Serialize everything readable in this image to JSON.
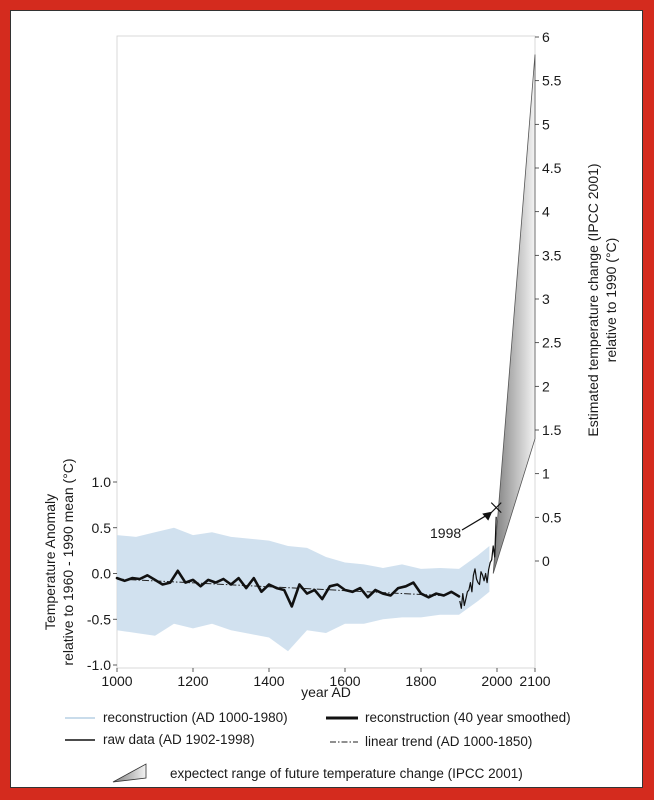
{
  "colors": {
    "background_border": "#d42b1e",
    "reconstruction_band": "#c9dcec",
    "smoothed_line": "#111111",
    "raw_data": "#111111",
    "trend_line": "#222222",
    "projection_fill_top": "#efefef",
    "projection_fill_dark": "#8a8a8a"
  },
  "chart_data": {
    "type": "line",
    "xlabel": "year AD",
    "ylabel_left": [
      "Temperature Anomaly",
      "relative to 1960 - 1990 mean (°C)"
    ],
    "ylabel_right": [
      "Estimated temperature change (IPCC 2001)",
      "relative to 1990 (°C)"
    ],
    "x_ticks": [
      "1000",
      "1200",
      "1400",
      "1600",
      "1800",
      "2000",
      "2100"
    ],
    "x_tick_values": [
      1000,
      1200,
      1400,
      1600,
      1800,
      2000,
      2100
    ],
    "xlim": [
      1000,
      2100
    ],
    "left_ticks": [
      "1.0",
      "0.5",
      "0.0",
      "-0.5",
      "-1.0"
    ],
    "left_tick_values": [
      1.0,
      0.5,
      0.0,
      -0.5,
      -1.0
    ],
    "ylim_left": [
      -1.0,
      1.0
    ],
    "right_ticks": [
      "6",
      "5.5",
      "5",
      "4.5",
      "4",
      "3.5",
      "3",
      "2.5",
      "2",
      "1.5",
      "1",
      "0.5",
      "0"
    ],
    "right_tick_values": [
      6,
      5.5,
      5,
      4.5,
      4,
      3.5,
      3,
      2.5,
      2,
      1.5,
      1,
      0.5,
      0
    ],
    "right_offset_note": "",
    "annotation": "1998",
    "annotation_point": {
      "x": 1998,
      "y_left": 0.72
    },
    "series": [
      {
        "name": "reconstruction (40 year smoothed)",
        "style": "thick-line",
        "x": [
          1000,
          1020,
          1040,
          1060,
          1080,
          1100,
          1120,
          1140,
          1160,
          1180,
          1200,
          1220,
          1240,
          1260,
          1280,
          1300,
          1320,
          1340,
          1360,
          1380,
          1400,
          1420,
          1440,
          1460,
          1480,
          1500,
          1520,
          1540,
          1560,
          1580,
          1600,
          1620,
          1640,
          1660,
          1680,
          1700,
          1720,
          1740,
          1760,
          1780,
          1800,
          1820,
          1840,
          1860,
          1880,
          1900
        ],
        "y": [
          -0.05,
          -0.08,
          -0.05,
          -0.06,
          -0.02,
          -0.07,
          -0.12,
          -0.1,
          0.03,
          -0.1,
          -0.07,
          -0.14,
          -0.07,
          -0.1,
          -0.06,
          -0.12,
          -0.05,
          -0.16,
          -0.05,
          -0.2,
          -0.12,
          -0.16,
          -0.18,
          -0.36,
          -0.12,
          -0.22,
          -0.18,
          -0.28,
          -0.14,
          -0.12,
          -0.18,
          -0.2,
          -0.16,
          -0.26,
          -0.18,
          -0.22,
          -0.24,
          -0.16,
          -0.14,
          -0.1,
          -0.22,
          -0.26,
          -0.22,
          -0.24,
          -0.2,
          -0.25
        ]
      },
      {
        "name": "linear trend (AD 1000-1850)",
        "style": "dash-dot",
        "x": [
          1000,
          1850
        ],
        "y": [
          -0.06,
          -0.24
        ]
      },
      {
        "name": "raw data (AD 1902-1998)",
        "style": "thin-line",
        "x": [
          1902,
          1906,
          1910,
          1914,
          1918,
          1922,
          1926,
          1930,
          1934,
          1938,
          1942,
          1946,
          1950,
          1954,
          1958,
          1962,
          1966,
          1970,
          1974,
          1978,
          1982,
          1986,
          1990,
          1994,
          1998
        ],
        "y": [
          -0.3,
          -0.38,
          -0.22,
          -0.35,
          -0.28,
          -0.2,
          -0.18,
          -0.1,
          -0.2,
          -0.02,
          0.05,
          -0.06,
          -0.1,
          -0.12,
          0.02,
          -0.02,
          -0.08,
          0.0,
          -0.1,
          0.04,
          0.12,
          0.15,
          0.3,
          0.18,
          0.62
        ]
      },
      {
        "name": "reconstruction (AD 1000-1980)",
        "style": "band",
        "x": [
          1000,
          1050,
          1100,
          1150,
          1200,
          1250,
          1300,
          1350,
          1400,
          1450,
          1500,
          1550,
          1600,
          1650,
          1700,
          1750,
          1800,
          1850,
          1900,
          1950,
          1980
        ],
        "upper": [
          0.42,
          0.4,
          0.45,
          0.5,
          0.42,
          0.45,
          0.4,
          0.38,
          0.36,
          0.3,
          0.28,
          0.18,
          0.12,
          0.1,
          0.06,
          0.1,
          0.05,
          0.06,
          0.05,
          0.2,
          0.3
        ],
        "lower": [
          -0.62,
          -0.65,
          -0.68,
          -0.55,
          -0.6,
          -0.55,
          -0.62,
          -0.66,
          -0.7,
          -0.85,
          -0.62,
          -0.65,
          -0.55,
          -0.55,
          -0.5,
          -0.48,
          -0.48,
          -0.45,
          -0.45,
          -0.3,
          -0.2
        ]
      }
    ],
    "projection": {
      "name": "expectect range of future temperature change (IPCC 2001)",
      "start": {
        "x": 1990,
        "y_left": 0.0
      },
      "end_upper": {
        "x": 2100,
        "y_right": 5.8
      },
      "end_lower": {
        "x": 2100,
        "y_right": 1.4
      }
    }
  },
  "legend": {
    "reconstruction": "reconstruction (AD 1000-1980)",
    "smoothed": "reconstruction (40 year smoothed)",
    "raw": "raw data (AD 1902-1998)",
    "trend": "linear trend (AD 1000-1850)",
    "projection": "expectect range of future temperature change (IPCC 2001)"
  }
}
